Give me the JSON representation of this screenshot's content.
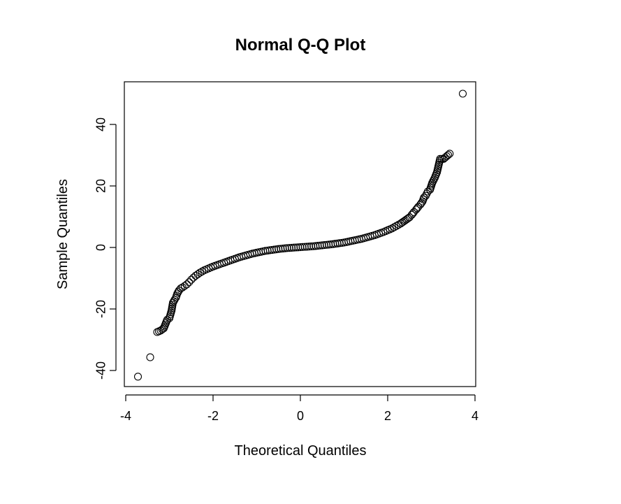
{
  "chart_data": {
    "type": "scatter",
    "title": "Normal Q-Q Plot",
    "xlabel": "Theoretical Quantiles",
    "ylabel": "Sample Quantiles",
    "xlim": [
      -4,
      4
    ],
    "ylim": [
      -43,
      51
    ],
    "x_ticks": [
      -4,
      -2,
      0,
      2,
      4
    ],
    "y_ticks": [
      -40,
      -20,
      0,
      20,
      40
    ],
    "grid": false,
    "legend": "none",
    "x_tick_labels": [
      "-4",
      "-2",
      "0",
      "2",
      "4"
    ],
    "y_tick_labels": [
      "-40",
      "-20",
      "0",
      "20",
      "40"
    ],
    "series": [
      {
        "points": [
          [
            -3.72,
            -42
          ],
          [
            -3.44,
            -35.7
          ],
          [
            -3.28,
            -27.5
          ],
          [
            -3.2,
            -27
          ],
          [
            -3.13,
            -26.3
          ],
          [
            -3.05,
            -23.5
          ],
          [
            -3.0,
            -23
          ],
          [
            -2.95,
            -20.5
          ],
          [
            -2.92,
            -18
          ],
          [
            -2.88,
            -17
          ],
          [
            -2.85,
            -16.3
          ],
          [
            -2.82,
            -15
          ],
          [
            -2.78,
            -14
          ],
          [
            -2.74,
            -13.3
          ],
          [
            -2.7,
            -13
          ],
          [
            -2.65,
            -12.5
          ],
          [
            -2.6,
            -12
          ],
          [
            -2.55,
            -11.3
          ],
          [
            -2.5,
            -10.5
          ],
          [
            -2.45,
            -9.8
          ],
          [
            -2.4,
            -9.2
          ],
          [
            -2.35,
            -8.7
          ],
          [
            -2.3,
            -8.2
          ],
          [
            -2.25,
            -7.8
          ],
          [
            -2.2,
            -7.4
          ],
          [
            -2.1,
            -6.8
          ],
          [
            -2.0,
            -6.2
          ],
          [
            -1.9,
            -5.7
          ],
          [
            -1.8,
            -5.2
          ],
          [
            -1.7,
            -4.7
          ],
          [
            -1.6,
            -4.2
          ],
          [
            -1.5,
            -3.7
          ],
          [
            -1.4,
            -3.2
          ],
          [
            -1.3,
            -2.8
          ],
          [
            -1.2,
            -2.4
          ],
          [
            -1.1,
            -2.0
          ],
          [
            -1.0,
            -1.7
          ],
          [
            -0.9,
            -1.4
          ],
          [
            -0.8,
            -1.1
          ],
          [
            -0.7,
            -0.9
          ],
          [
            -0.6,
            -0.7
          ],
          [
            -0.5,
            -0.5
          ],
          [
            -0.4,
            -0.35
          ],
          [
            -0.3,
            -0.2
          ],
          [
            -0.2,
            -0.1
          ],
          [
            -0.1,
            0
          ],
          [
            0.0,
            0.1
          ],
          [
            0.1,
            0.2
          ],
          [
            0.2,
            0.3
          ],
          [
            0.3,
            0.4
          ],
          [
            0.4,
            0.55
          ],
          [
            0.5,
            0.7
          ],
          [
            0.6,
            0.85
          ],
          [
            0.7,
            1.0
          ],
          [
            0.8,
            1.2
          ],
          [
            0.9,
            1.4
          ],
          [
            1.0,
            1.6
          ],
          [
            1.1,
            1.9
          ],
          [
            1.2,
            2.2
          ],
          [
            1.3,
            2.5
          ],
          [
            1.4,
            2.8
          ],
          [
            1.5,
            3.2
          ],
          [
            1.6,
            3.6
          ],
          [
            1.7,
            4.0
          ],
          [
            1.8,
            4.5
          ],
          [
            1.9,
            5.0
          ],
          [
            2.0,
            5.6
          ],
          [
            2.1,
            6.2
          ],
          [
            2.2,
            7.0
          ],
          [
            2.3,
            7.8
          ],
          [
            2.4,
            8.8
          ],
          [
            2.5,
            9.8
          ],
          [
            2.55,
            10.6
          ],
          [
            2.6,
            11.5
          ],
          [
            2.65,
            12.3
          ],
          [
            2.7,
            13.2
          ],
          [
            2.75,
            14.0
          ],
          [
            2.8,
            15.0
          ],
          [
            2.83,
            16.2
          ],
          [
            2.87,
            16.8
          ],
          [
            2.92,
            18.2
          ],
          [
            2.97,
            18.8
          ],
          [
            3.02,
            21
          ],
          [
            3.08,
            22.7
          ],
          [
            3.13,
            24.5
          ],
          [
            3.2,
            28.8
          ],
          [
            3.28,
            28.8
          ],
          [
            3.42,
            30.5
          ],
          [
            3.72,
            50
          ]
        ]
      }
    ]
  }
}
